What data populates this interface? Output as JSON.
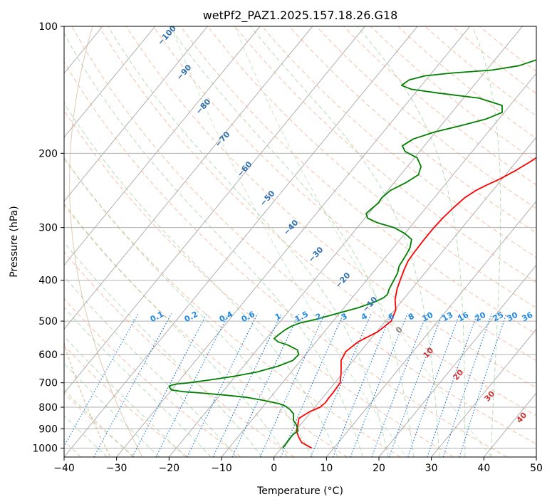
{
  "chart_data": {
    "type": "skew-t",
    "title": "wetPf2_PAZ1.2025.157.18.26.G18",
    "xlabel": "Temperature (°C)",
    "ylabel": "Pressure (hPa)",
    "xlim": [
      -40,
      50
    ],
    "ylim": [
      1050,
      100
    ],
    "y_scale": "log",
    "grid": true,
    "x_ticks": [
      "−40",
      "−30",
      "−20",
      "−10",
      "0",
      "10",
      "20",
      "30",
      "40",
      "50"
    ],
    "y_ticks": [
      "100",
      "200",
      "300",
      "400",
      "500",
      "600",
      "700",
      "800",
      "900",
      "1000"
    ],
    "series": [
      {
        "color": "#ff0000",
        "values": [
          [
            1000,
            5.8
          ],
          [
            970,
            3.0
          ],
          [
            940,
            1.5
          ],
          [
            910,
            0.2
          ],
          [
            880,
            -0.5
          ],
          [
            850,
            -1.3
          ],
          [
            820,
            -0.3
          ],
          [
            800,
            1.0
          ],
          [
            780,
            1.3
          ],
          [
            760,
            1.2
          ],
          [
            740,
            1.2
          ],
          [
            700,
            1.0
          ],
          [
            660,
            -0.5
          ],
          [
            620,
            -2.3
          ],
          [
            590,
            -2.8
          ],
          [
            560,
            -2.0
          ],
          [
            530,
            0.2
          ],
          [
            500,
            1.1
          ],
          [
            470,
            0.2
          ],
          [
            445,
            -1.5
          ],
          [
            420,
            -2.8
          ],
          [
            400,
            -3.6
          ],
          [
            380,
            -4.4
          ],
          [
            360,
            -5.1
          ],
          [
            340,
            -5.3
          ],
          [
            320,
            -5.4
          ],
          [
            300,
            -5.4
          ],
          [
            285,
            -5.2
          ],
          [
            270,
            -4.8
          ],
          [
            255,
            -4.2
          ],
          [
            245,
            -3.2
          ],
          [
            238,
            -2.0
          ],
          [
            230,
            -0.4
          ],
          [
            220,
            1.2
          ],
          [
            210,
            2.6
          ],
          [
            200,
            3.8
          ],
          [
            190,
            4.7
          ],
          [
            180,
            5.6
          ],
          [
            170,
            6.5
          ],
          [
            160,
            7.9
          ],
          [
            150,
            9.7
          ],
          [
            140,
            11.8
          ],
          [
            130,
            13.7
          ],
          [
            120,
            15.3
          ],
          [
            115,
            15.8
          ],
          [
            110,
            16.1
          ],
          [
            105,
            16.5
          ],
          [
            100,
            16.8
          ]
        ]
      },
      {
        "color": "#008000",
        "values": [
          [
            1000,
            0.3
          ],
          [
            960,
            0.2
          ],
          [
            930,
            0.1
          ],
          [
            910,
            0.5
          ],
          [
            880,
            -0.8
          ],
          [
            860,
            -2.0
          ],
          [
            830,
            -3.0
          ],
          [
            810,
            -4.4
          ],
          [
            795,
            -5.8
          ],
          [
            785,
            -7.3
          ],
          [
            778,
            -9.0
          ],
          [
            770,
            -11.0
          ],
          [
            758,
            -14.5
          ],
          [
            748,
            -19.5
          ],
          [
            740,
            -24.0
          ],
          [
            735,
            -27.5
          ],
          [
            728,
            -30.0
          ],
          [
            722,
            -30.5
          ],
          [
            715,
            -31.0
          ],
          [
            710,
            -30.8
          ],
          [
            705,
            -30.0
          ],
          [
            700,
            -27.8
          ],
          [
            690,
            -24.5
          ],
          [
            675,
            -20.0
          ],
          [
            660,
            -16.5
          ],
          [
            640,
            -13.5
          ],
          [
            620,
            -11.5
          ],
          [
            600,
            -11.3
          ],
          [
            585,
            -12.3
          ],
          [
            570,
            -14.8
          ],
          [
            560,
            -17.2
          ],
          [
            550,
            -18.5
          ],
          [
            540,
            -18.3
          ],
          [
            525,
            -17.8
          ],
          [
            515,
            -17.2
          ],
          [
            505,
            -16.0
          ],
          [
            495,
            -13.5
          ],
          [
            480,
            -10.5
          ],
          [
            465,
            -7.3
          ],
          [
            450,
            -5.0
          ],
          [
            440,
            -4.0
          ],
          [
            432,
            -3.8
          ],
          [
            420,
            -4.3
          ],
          [
            400,
            -4.8
          ],
          [
            385,
            -5.2
          ],
          [
            370,
            -6.0
          ],
          [
            355,
            -6.3
          ],
          [
            345,
            -6.5
          ],
          [
            335,
            -6.8
          ],
          [
            320,
            -7.8
          ],
          [
            310,
            -10.0
          ],
          [
            300,
            -13.0
          ],
          [
            292,
            -17.0
          ],
          [
            285,
            -19.5
          ],
          [
            278,
            -20.5
          ],
          [
            270,
            -20.2
          ],
          [
            262,
            -19.8
          ],
          [
            255,
            -20.0
          ],
          [
            245,
            -19.5
          ],
          [
            235,
            -17.8
          ],
          [
            225,
            -16.6
          ],
          [
            215,
            -17.4
          ],
          [
            205,
            -19.5
          ],
          [
            198,
            -22.8
          ],
          [
            192,
            -24.2
          ],
          [
            185,
            -23.2
          ],
          [
            178,
            -20.2
          ],
          [
            172,
            -16.2
          ],
          [
            166,
            -12.5
          ],
          [
            160,
            -10.4
          ],
          [
            154,
            -11.5
          ],
          [
            148,
            -17.0
          ],
          [
            144,
            -25.5
          ],
          [
            141,
            -31.3
          ],
          [
            138,
            -33.8
          ],
          [
            134,
            -33.2
          ],
          [
            131,
            -30.8
          ],
          [
            129,
            -26.0
          ],
          [
            127,
            -19.0
          ],
          [
            124,
            -14.5
          ],
          [
            120,
            -12.0
          ],
          [
            115,
            -9.5
          ],
          [
            110,
            -7.5
          ],
          [
            105,
            -5.5
          ],
          [
            100,
            -3.3
          ]
        ]
      }
    ],
    "dry_adiabat_labels": [
      "−100",
      "−90",
      "−80",
      "−70",
      "−60",
      "−50",
      "−40",
      "−30",
      "−20",
      "−10",
      "0",
      "10",
      "20",
      "30",
      "40"
    ],
    "mixing_ratio_labels": [
      "0.1",
      "0.2",
      "0.4",
      "0.6",
      "1",
      "1.5",
      "2",
      "3",
      "4",
      "6",
      "8",
      "10",
      "13",
      "16",
      "20",
      "25",
      "30",
      "36"
    ]
  }
}
